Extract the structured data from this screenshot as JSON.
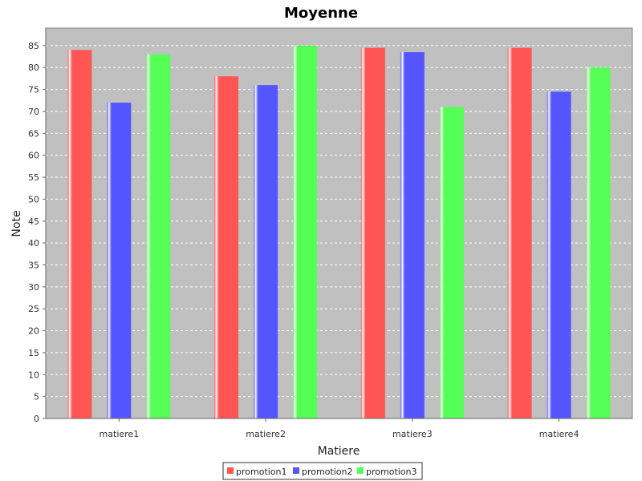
{
  "chart_data": {
    "type": "bar",
    "title": "Moyenne",
    "xlabel": "Matiere",
    "ylabel": "Note",
    "categories": [
      "matiere1",
      "matiere2",
      "matiere3",
      "matiere4"
    ],
    "series": [
      {
        "name": "promotion1",
        "values": [
          84,
          78,
          84.5,
          84.5
        ],
        "color": "#ff5555"
      },
      {
        "name": "promotion2",
        "values": [
          72,
          76,
          83.5,
          74.5
        ],
        "color": "#5555ff"
      },
      {
        "name": "promotion3",
        "values": [
          83,
          85,
          71,
          80
        ],
        "color": "#55ff55"
      }
    ],
    "ylim": [
      0,
      89
    ],
    "yticks": [
      "0",
      "5",
      "10",
      "15",
      "20",
      "25",
      "30",
      "35",
      "40",
      "45",
      "50",
      "55",
      "60",
      "65",
      "70",
      "75",
      "80",
      "85"
    ],
    "grid": true,
    "legend_position": "bottom-center",
    "plot_background": "#c0c0c0"
  }
}
